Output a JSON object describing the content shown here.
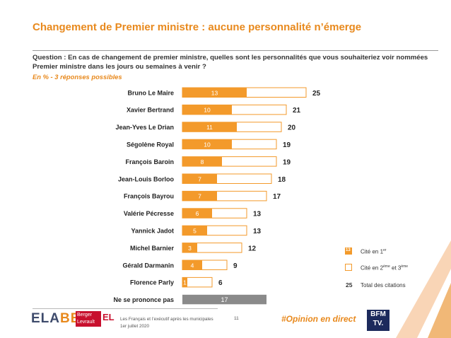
{
  "title": "Changement de Premier ministre : aucune personnalité n’émerge",
  "question": "Question : En cas de changement de premier ministre, quelles sont les personnalités que vous souhaiteriez voir nommées Premier ministre dans les jours ou semaines à venir ?",
  "subnote": "En  % - 3 réponses possibles",
  "chart_data": {
    "type": "bar",
    "orientation": "horizontal",
    "stacked": true,
    "categories": [
      "Bruno Le Maire",
      "Xavier Bertrand",
      "Jean-Yves Le Drian",
      "Ségolène Royal",
      "François Baroin",
      "Jean-Louis Borloo",
      "François Bayrou",
      "Valérie Pécresse",
      "Yannick Jadot",
      "Michel Barnier",
      "Gérald Darmanin",
      "Florence Parly",
      "Ne se prononce pas"
    ],
    "first_mention": [
      13,
      10,
      11,
      10,
      8,
      7,
      7,
      6,
      5,
      3,
      4,
      1,
      null
    ],
    "total": [
      25,
      21,
      20,
      19,
      19,
      18,
      17,
      13,
      13,
      12,
      9,
      6,
      17
    ],
    "no_opinion_index": 12,
    "xlim": [
      0,
      27
    ],
    "colors": {
      "first": "#f39a2b",
      "total_border": "#f39a2b",
      "no_opinion": "#8a8a8a"
    }
  },
  "legend": {
    "first_value": "13",
    "first_label": "Cité en 1",
    "first_sup": "er",
    "other_label_a": "Cité en 2",
    "other_sup_a": "ème",
    "other_label_b": " et 3",
    "other_sup_b": "ème",
    "total_value": "25",
    "total_label": "Total des citations"
  },
  "footer": {
    "logo_main": "ELA",
    "logo_accent": "BE",
    "partner_line1": "Berger",
    "partner_line2": "Levrault",
    "partner_tag": "EL",
    "line1": "Les Français et l’exécutif après les municipales",
    "line2": "1er juillet 2020",
    "page": "11",
    "hashtag": "#Opinion en direct",
    "tv_logo_line1": "BFM",
    "tv_logo_line2": "TV."
  }
}
